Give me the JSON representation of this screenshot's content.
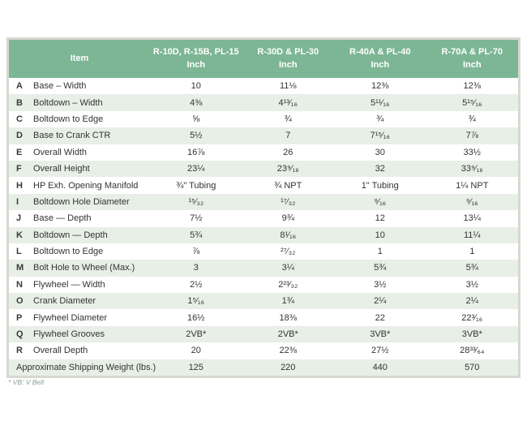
{
  "colors": {
    "header_bg": "#7cb695",
    "header_text": "#ffffff",
    "stripe_bg": "#e8efe7",
    "frame_border": "#d8d8d0",
    "body_text": "#333333",
    "footnote_text": "#85a094"
  },
  "table": {
    "header": {
      "item_label": "Item",
      "columns": [
        {
          "models": "R-10D, R-15B, PL-15",
          "unit": "Inch"
        },
        {
          "models": "R-30D & PL-30",
          "unit": "Inch"
        },
        {
          "models": "R-40A & PL-40",
          "unit": "Inch"
        },
        {
          "models": "R-70A & PL-70",
          "unit": "Inch"
        }
      ]
    },
    "rows": [
      {
        "letter": "A",
        "item": "Base – Width",
        "values": [
          "10",
          "11⅛",
          "12⅜",
          "12⅜"
        ]
      },
      {
        "letter": "B",
        "item": "Boltdown – Width",
        "values": [
          "4⅜",
          "4¹³⁄₁₆",
          "5¹¹⁄₁₆",
          "5¹⁵⁄₁₆"
        ]
      },
      {
        "letter": "C",
        "item": "Boltdown to Edge",
        "values": [
          "⅝",
          "¾",
          "¾",
          "¾"
        ]
      },
      {
        "letter": "D",
        "item": "Base to Crank CTR",
        "values": [
          "5½",
          "7",
          "7¹⁵⁄₁₆",
          "7⅞"
        ]
      },
      {
        "letter": "E",
        "item": "Overall Width",
        "values": [
          "16⅞",
          "26",
          "30",
          "33½"
        ]
      },
      {
        "letter": "F",
        "item": "Overall Height",
        "values": [
          "23¼",
          "23⁹⁄₁₆",
          "32",
          "33⁹⁄₁₆"
        ]
      },
      {
        "letter": "H",
        "item": "HP Exh. Opening Manifold",
        "values": [
          "¾\" Tubing",
          "¾ NPT",
          "1\" Tubing",
          "1¼ NPT"
        ]
      },
      {
        "letter": "I",
        "item": "Boltdown Hole Diameter",
        "values": [
          "¹⁵⁄₃₂",
          "¹⁷⁄₃₂",
          "⁹⁄₁₆",
          "⁹⁄₁₆"
        ]
      },
      {
        "letter": "J",
        "item": "Base — Depth",
        "values": [
          "7½",
          "9¾",
          "12",
          "13¼"
        ]
      },
      {
        "letter": "K",
        "item": "Boltdown — Depth",
        "values": [
          "5¾",
          "8¹⁄₁₆",
          "10",
          "11¼"
        ]
      },
      {
        "letter": "L",
        "item": "Boltdown to Edge",
        "values": [
          "⅞",
          "²⁷⁄₃₂",
          "1",
          "1"
        ]
      },
      {
        "letter": "M",
        "item": "Bolt Hole to Wheel (Max.)",
        "values": [
          "3",
          "3¼",
          "5¾",
          "5¾"
        ]
      },
      {
        "letter": "N",
        "item": "Flywheel — Width",
        "values": [
          "2½",
          "2²³⁄₃₂",
          "3½",
          "3½"
        ]
      },
      {
        "letter": "O",
        "item": "Crank Diameter",
        "values": [
          "1⁵⁄₁₆",
          "1¾",
          "2¼",
          "2¼"
        ]
      },
      {
        "letter": "P",
        "item": "Flywheel Diameter",
        "values": [
          "16½",
          "18⅜",
          "22",
          "22³⁄₁₆"
        ]
      },
      {
        "letter": "Q",
        "item": "Flywheel Grooves",
        "values": [
          "2VB*",
          "2VB*",
          "3VB*",
          "3VB*"
        ]
      },
      {
        "letter": "R",
        "item": "Overall Depth",
        "values": [
          "20",
          "22⅜",
          "27½",
          "28³³⁄₆₄"
        ]
      }
    ],
    "footer_row": {
      "label": "Approximate Shipping Weight (lbs.)",
      "values": [
        "125",
        "220",
        "440",
        "570"
      ]
    },
    "footnote": "* VB: V Belt"
  }
}
